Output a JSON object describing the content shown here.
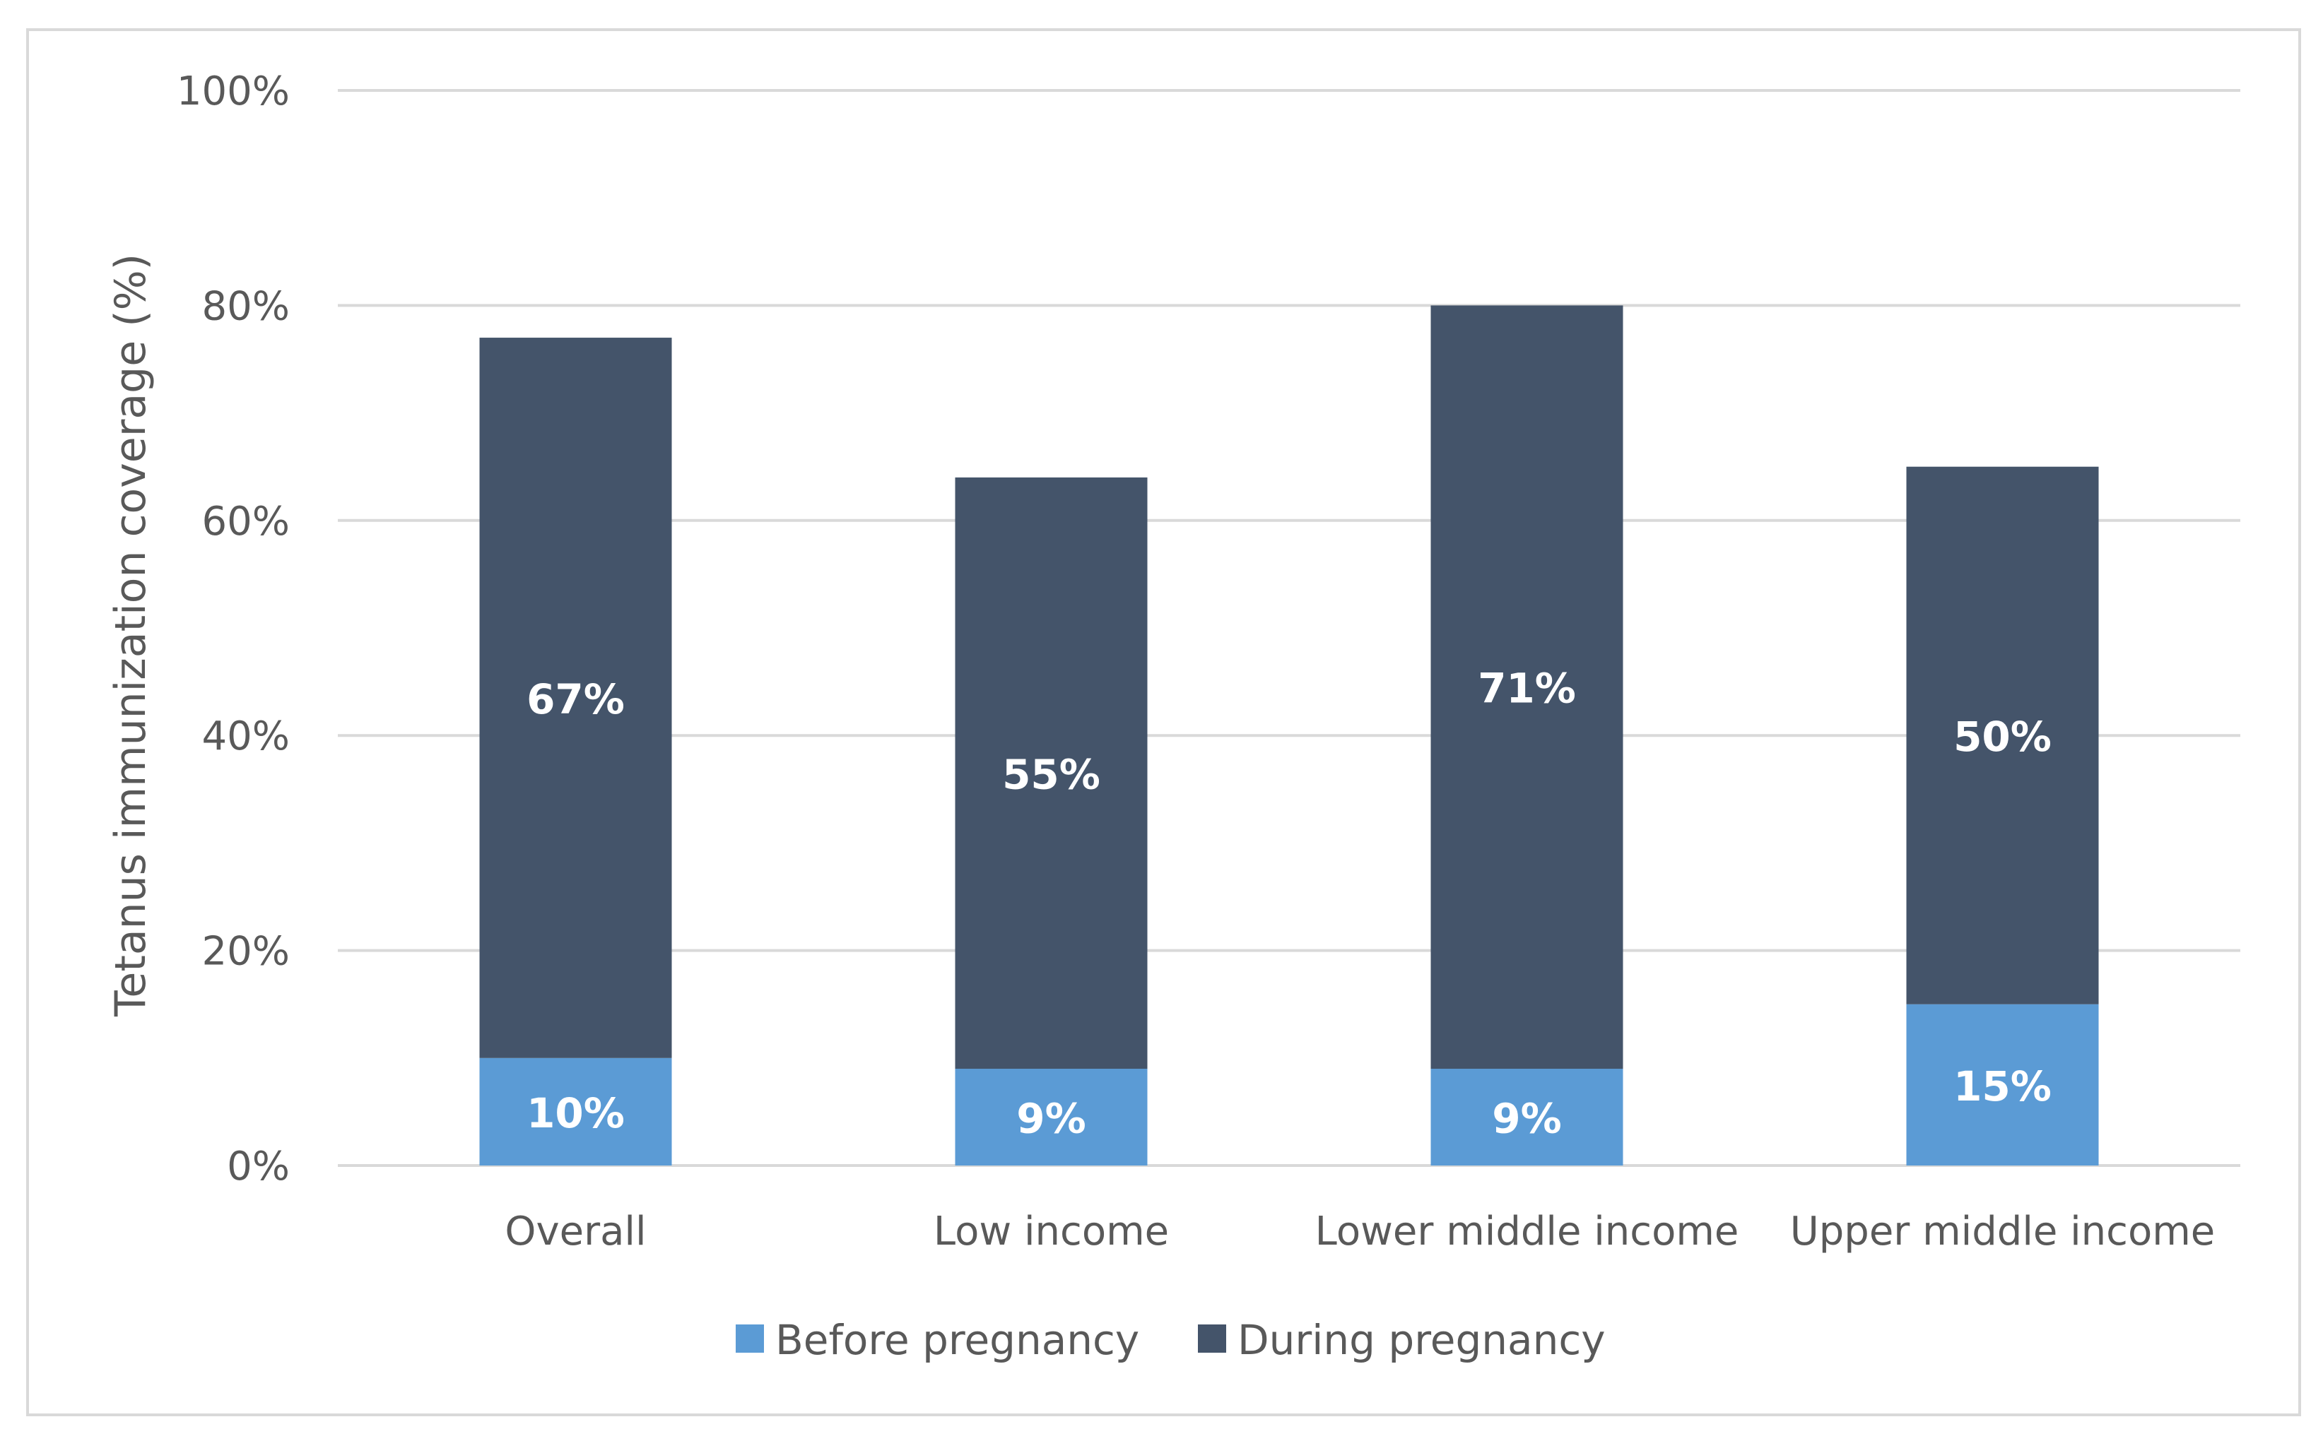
{
  "chart_data": {
    "type": "bar",
    "stacked": true,
    "title": "",
    "xlabel": "",
    "ylabel": "Tetanus immunization coverage (%)",
    "ylim": [
      0,
      100
    ],
    "yticks": [
      "0%",
      "20%",
      "40%",
      "60%",
      "80%",
      "100%"
    ],
    "grid": true,
    "legend_position": "bottom",
    "categories": [
      "Overall",
      "Low income",
      "Lower middle income",
      "Upper middle income"
    ],
    "series": [
      {
        "name": "Before pregnancy",
        "color": "#5b9bd5",
        "values": [
          10,
          9,
          9,
          15
        ],
        "labels": [
          "10%",
          "9%",
          "9%",
          "15%"
        ]
      },
      {
        "name": "During pregnancy",
        "color": "#44546a",
        "values": [
          67,
          55,
          71,
          50
        ],
        "labels": [
          "67%",
          "55%",
          "71%",
          "50%"
        ]
      }
    ]
  }
}
